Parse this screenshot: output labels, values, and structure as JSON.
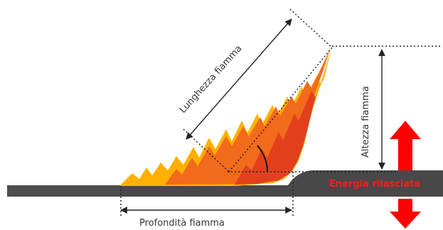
{
  "labels": {
    "flame_length": "Lunghezza fiamma",
    "flame_height": "Altezza fiamma",
    "flame_depth": "Profondità fiamma",
    "energy": "Energia rilasciata"
  },
  "colors": {
    "ground": "#4a4a4a",
    "flame_outer": "#ffb000",
    "flame_mid": "#f26a1b",
    "flame_inner": "#e2401d",
    "energy_arrow": "#ff0000",
    "energy_text": "#ff1a1a",
    "guide_lines": "#222222"
  },
  "icons": {
    "up_arrow": "energy-up-arrow-icon",
    "down_arrow": "energy-down-arrow-icon"
  }
}
